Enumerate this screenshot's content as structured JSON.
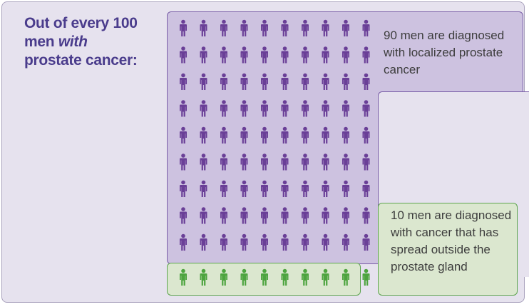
{
  "heading": {
    "line1": "Out of every 100",
    "line2_prefix": "men ",
    "line2_em": "with",
    "line3": "prostate cancer:"
  },
  "groups": [
    {
      "name": "localized",
      "count": 90,
      "color": "#6a3f97",
      "text": "90 men are diagnosed with localized prostate cancer"
    },
    {
      "name": "spread",
      "count": 10,
      "color": "#4da43f",
      "text": "10 men are diagnosed with cancer that has spread outside the prostate gland"
    }
  ],
  "chart_data": {
    "type": "pictogram",
    "total": 100,
    "series": [
      {
        "name": "localized",
        "value": 90
      },
      {
        "name": "spread",
        "value": 10
      }
    ]
  },
  "colors": {
    "purple_icon": "#6a3f97",
    "green_icon": "#4da43f",
    "heading": "#4a3c8c"
  }
}
